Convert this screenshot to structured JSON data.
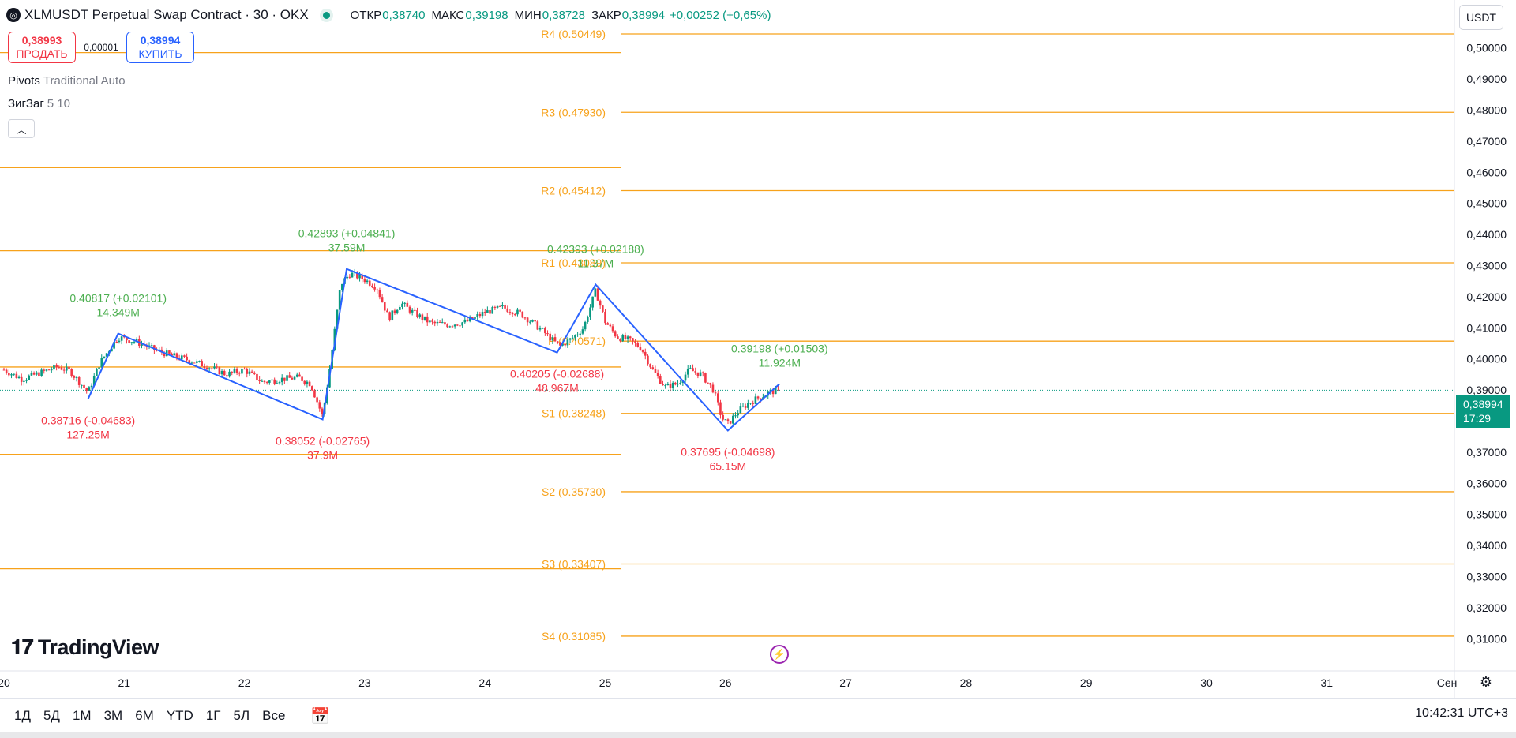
{
  "header": {
    "title": "XLMUSDT Perpetual Swap Contract · 30 · OKX",
    "ohlc": [
      {
        "label": "ОТКР",
        "value": "0,38740"
      },
      {
        "label": "МАКС",
        "value": "0,39198"
      },
      {
        "label": "МИН",
        "value": "0,38728"
      },
      {
        "label": "ЗАКР",
        "value": "0,38994"
      }
    ],
    "change": "+0,00252 (+0,65%)",
    "currency": "USDT"
  },
  "trade": {
    "sell_price": "0,38993",
    "sell_label": "ПРОДАТЬ",
    "spread": "0,00001",
    "buy_price": "0,38994",
    "buy_label": "КУПИТЬ"
  },
  "indicators": {
    "pivots_name": "Pivots",
    "pivots_args": "Traditional Auto",
    "zigzag_name": "ЗигЗаг",
    "zigzag_args": "5 10"
  },
  "icons": {
    "collapse": "chevron-up-icon",
    "calendar": "calendar-range-icon",
    "settings": "gear-icon",
    "flash": "lightning-icon",
    "logo": "tradingview-logo"
  },
  "brand": "TradingView",
  "price_tag": {
    "price": "0,38994",
    "countdown": "17:29"
  },
  "bottom": {
    "ranges": [
      "1Д",
      "5Д",
      "1М",
      "3М",
      "6М",
      "YTD",
      "1Г",
      "5Л",
      "Все"
    ],
    "clock": "10:42:31 UTC+3"
  },
  "colors": {
    "up": "#089981",
    "down": "#f23645",
    "pivot": "#f7a21b",
    "zigzag": "#2962ff",
    "zigzag_up_label": "#4caf50",
    "zigzag_down_label": "#f23645"
  },
  "chart_data": {
    "type": "candlestick",
    "title": "XLMUSDT Perpetual Swap Contract · 30 · OKX",
    "y_axis": {
      "min": 0.305,
      "max": 0.505,
      "ticks": [
        "0,31000",
        "0,32000",
        "0,33000",
        "0,34000",
        "0,35000",
        "0,36000",
        "0,37000",
        "0,38000",
        "0,39000",
        "0,40000",
        "0,41000",
        "0,42000",
        "0,43000",
        "0,44000",
        "0,45000",
        "0,46000",
        "0,47000",
        "0,48000",
        "0,49000",
        "0,50000"
      ]
    },
    "x_axis": {
      "ticks": [
        "20",
        "21",
        "22",
        "23",
        "24",
        "25",
        "26",
        "27",
        "28",
        "29",
        "30",
        "31",
        "Сен"
      ]
    },
    "pivots": {
      "current": [
        {
          "label": "R4 (0.50449)",
          "value": 0.50449
        },
        {
          "label": "R3 (0.47930)",
          "value": 0.4793
        },
        {
          "label": "R2 (0.45412)",
          "value": 0.45412
        },
        {
          "label": "R1 (0.43089)",
          "value": 0.43089
        },
        {
          "label": "P (0.40571)",
          "value": 0.40571
        },
        {
          "label": "S1 (0.38248)",
          "value": 0.38248
        },
        {
          "label": "S2 (0.35730)",
          "value": 0.3573
        },
        {
          "label": "S3 (0.33407)",
          "value": 0.33407
        },
        {
          "label": "S4 (0.31085)",
          "value": 0.31085
        }
      ],
      "previous": [
        0.4985,
        0.4615,
        0.4348,
        0.3974,
        0.3693,
        0.3325
      ]
    },
    "zigzag": {
      "points": [
        {
          "day": 20.7,
          "price": 0.38716
        },
        {
          "day": 20.95,
          "price": 0.40817
        },
        {
          "day": 22.65,
          "price": 0.38052
        },
        {
          "day": 22.85,
          "price": 0.42893
        },
        {
          "day": 24.6,
          "price": 0.40205
        },
        {
          "day": 24.92,
          "price": 0.42393
        },
        {
          "day": 26.02,
          "price": 0.37695
        },
        {
          "day": 26.45,
          "price": 0.39198
        }
      ],
      "labels": [
        {
          "text": "0.38716 (-0.04683)",
          "sub": "127.25M",
          "day": 20.7,
          "price": 0.38716,
          "dir": "down"
        },
        {
          "text": "0.40817 (+0.02101)",
          "sub": "14.349M",
          "day": 20.95,
          "price": 0.40817,
          "dir": "up"
        },
        {
          "text": "0.38052 (-0.02765)",
          "sub": "37.9M",
          "day": 22.65,
          "price": 0.38052,
          "dir": "down"
        },
        {
          "text": "0.42893 (+0.04841)",
          "sub": "37.59M",
          "day": 22.85,
          "price": 0.42893,
          "dir": "up"
        },
        {
          "text": "0.40205 (-0.02688)",
          "sub": "48.967M",
          "day": 24.6,
          "price": 0.40205,
          "dir": "down"
        },
        {
          "text": "0.42393 (+0.02188)",
          "sub": "11.37M",
          "day": 24.92,
          "price": 0.42393,
          "dir": "up"
        },
        {
          "text": "0.37695 (-0.04698)",
          "sub": "65.15M",
          "day": 26.02,
          "price": 0.37695,
          "dir": "down"
        },
        {
          "text": "0.39198 (+0.01503)",
          "sub": "11.924M",
          "day": 26.45,
          "price": 0.39198,
          "dir": "up"
        }
      ]
    },
    "last_price": 0.38994,
    "candles_path": [
      [
        20.0,
        0.3965
      ],
      [
        20.15,
        0.3935
      ],
      [
        20.3,
        0.3955
      ],
      [
        20.45,
        0.3975
      ],
      [
        20.55,
        0.396
      ],
      [
        20.7,
        0.3893
      ],
      [
        20.8,
        0.399
      ],
      [
        20.95,
        0.407
      ],
      [
        21.1,
        0.4055
      ],
      [
        21.25,
        0.403
      ],
      [
        21.4,
        0.401
      ],
      [
        21.55,
        0.3995
      ],
      [
        21.7,
        0.3975
      ],
      [
        21.85,
        0.395
      ],
      [
        22.0,
        0.3965
      ],
      [
        22.15,
        0.3925
      ],
      [
        22.3,
        0.3935
      ],
      [
        22.45,
        0.394
      ],
      [
        22.55,
        0.392
      ],
      [
        22.65,
        0.3815
      ],
      [
        22.72,
        0.4
      ],
      [
        22.8,
        0.424
      ],
      [
        22.88,
        0.4275
      ],
      [
        23.0,
        0.4255
      ],
      [
        23.1,
        0.423
      ],
      [
        23.2,
        0.413
      ],
      [
        23.3,
        0.418
      ],
      [
        23.4,
        0.415
      ],
      [
        23.55,
        0.4115
      ],
      [
        23.7,
        0.411
      ],
      [
        23.85,
        0.412
      ],
      [
        24.0,
        0.415
      ],
      [
        24.15,
        0.4165
      ],
      [
        24.3,
        0.4145
      ],
      [
        24.45,
        0.41
      ],
      [
        24.55,
        0.4065
      ],
      [
        24.62,
        0.404
      ],
      [
        24.72,
        0.4065
      ],
      [
        24.82,
        0.41
      ],
      [
        24.92,
        0.422
      ],
      [
        25.0,
        0.412
      ],
      [
        25.1,
        0.407
      ],
      [
        25.2,
        0.406
      ],
      [
        25.3,
        0.4035
      ],
      [
        25.4,
        0.396
      ],
      [
        25.5,
        0.391
      ],
      [
        25.6,
        0.392
      ],
      [
        25.7,
        0.3965
      ],
      [
        25.8,
        0.395
      ],
      [
        25.9,
        0.39
      ],
      [
        25.97,
        0.381
      ],
      [
        26.02,
        0.379
      ],
      [
        26.1,
        0.383
      ],
      [
        26.2,
        0.386
      ],
      [
        26.3,
        0.388
      ],
      [
        26.38,
        0.3895
      ],
      [
        26.45,
        0.3899
      ]
    ]
  }
}
